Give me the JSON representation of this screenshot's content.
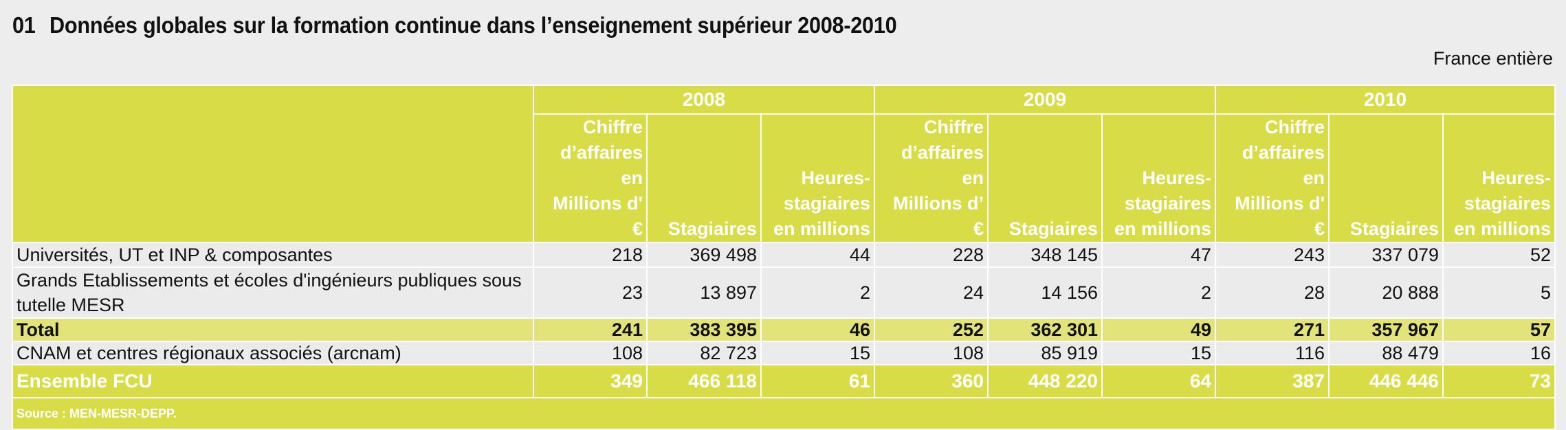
{
  "title": {
    "number": "01",
    "text": "Données globales sur la formation continue dans l’enseignement supérieur 2008-2010"
  },
  "scope": "France entière",
  "table": {
    "years": [
      "2008",
      "2009",
      "2010"
    ],
    "subheaders": [
      [
        "Chiffre",
        "d’affaires en",
        "Millions d' €"
      ],
      [
        "Stagiaires"
      ],
      [
        "Heures-",
        "stagiaires",
        "en millions"
      ],
      [
        "Chiffre",
        "d’affaires en",
        "Millions d’ €"
      ],
      [
        "Stagiaires"
      ],
      [
        "Heures-",
        "stagiaires",
        "en millions"
      ],
      [
        "Chiffre",
        "d’affaires en",
        "Millions d' €"
      ],
      [
        "Stagiaires"
      ],
      [
        "Heures-",
        "stagiaires",
        "en millions"
      ]
    ],
    "rows": [
      {
        "label": "Universités, UT et INP & composantes",
        "values": [
          "218",
          "369 498",
          "44",
          "228",
          "348 145",
          "47",
          "243",
          "337 079",
          "52"
        ]
      },
      {
        "label": "Grands Etablissements et écoles d'ingénieurs publiques sous tutelle MESR",
        "values": [
          "23",
          "13 897",
          "2",
          "24",
          "14 156",
          "2",
          "28",
          "20 888",
          "5"
        ]
      },
      {
        "label": "Total",
        "values": [
          "241",
          "383 395",
          "46",
          "252",
          "362 301",
          "49",
          "271",
          "357 967",
          "57"
        ]
      },
      {
        "label": "CNAM et centres régionaux associés (arcnam)",
        "values": [
          "108",
          "82 723",
          "15",
          "108",
          "85 919",
          "15",
          "116",
          "88 479",
          "16"
        ]
      },
      {
        "label": "Ensemble FCU",
        "values": [
          "349",
          "466 118",
          "61",
          "360",
          "448 220",
          "64",
          "387",
          "446 446",
          "73"
        ]
      }
    ],
    "source": "Source : MEN-MESR-DEPP."
  },
  "colors": {
    "header_band": "#d8dc46",
    "total_row": "#e2e47a",
    "body_row": "#ebebeb",
    "background": "#ededed"
  }
}
